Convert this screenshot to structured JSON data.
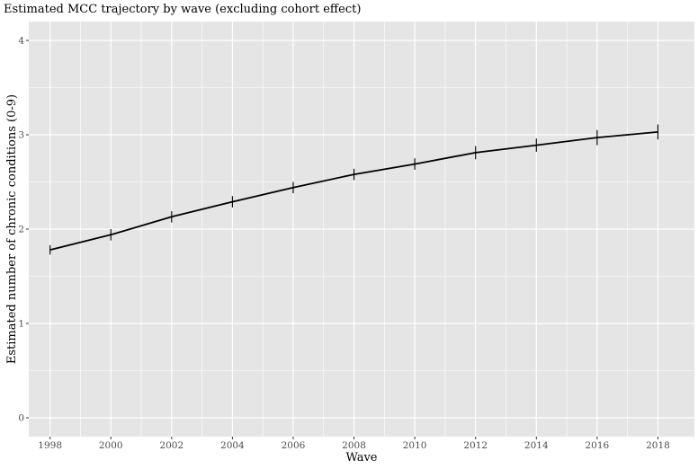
{
  "chart_data": {
    "type": "line",
    "title": "Estimated MCC trajectory by wave (excluding cohort effect)",
    "xlabel": "Wave",
    "ylabel": "Estimated number of chronic conditions (0-9)",
    "x": [
      1998,
      2000,
      2002,
      2004,
      2006,
      2008,
      2010,
      2012,
      2014,
      2016,
      2018
    ],
    "series": [
      {
        "values": [
          1.78,
          1.94,
          2.13,
          2.29,
          2.44,
          2.58,
          2.69,
          2.81,
          2.89,
          2.97,
          3.03
        ],
        "lower": [
          1.73,
          1.88,
          2.07,
          2.23,
          2.38,
          2.52,
          2.63,
          2.74,
          2.82,
          2.89,
          2.95
        ],
        "upper": [
          1.83,
          2.0,
          2.19,
          2.35,
          2.5,
          2.64,
          2.75,
          2.88,
          2.96,
          3.05,
          3.11
        ]
      }
    ],
    "xlim": [
      1997.3,
      2019.2
    ],
    "ylim": [
      -0.2,
      4.2
    ],
    "xticks": [
      "1998",
      "2000",
      "2002",
      "2004",
      "2006",
      "2008",
      "2010",
      "2012",
      "2014",
      "2016",
      "2018"
    ],
    "yticks": [
      "0",
      "1",
      "2",
      "3",
      "4"
    ],
    "grid": true,
    "legend": "none",
    "colors": {
      "panel": "#e5e5e5",
      "grid": "#ffffff",
      "line": "#000000"
    }
  }
}
